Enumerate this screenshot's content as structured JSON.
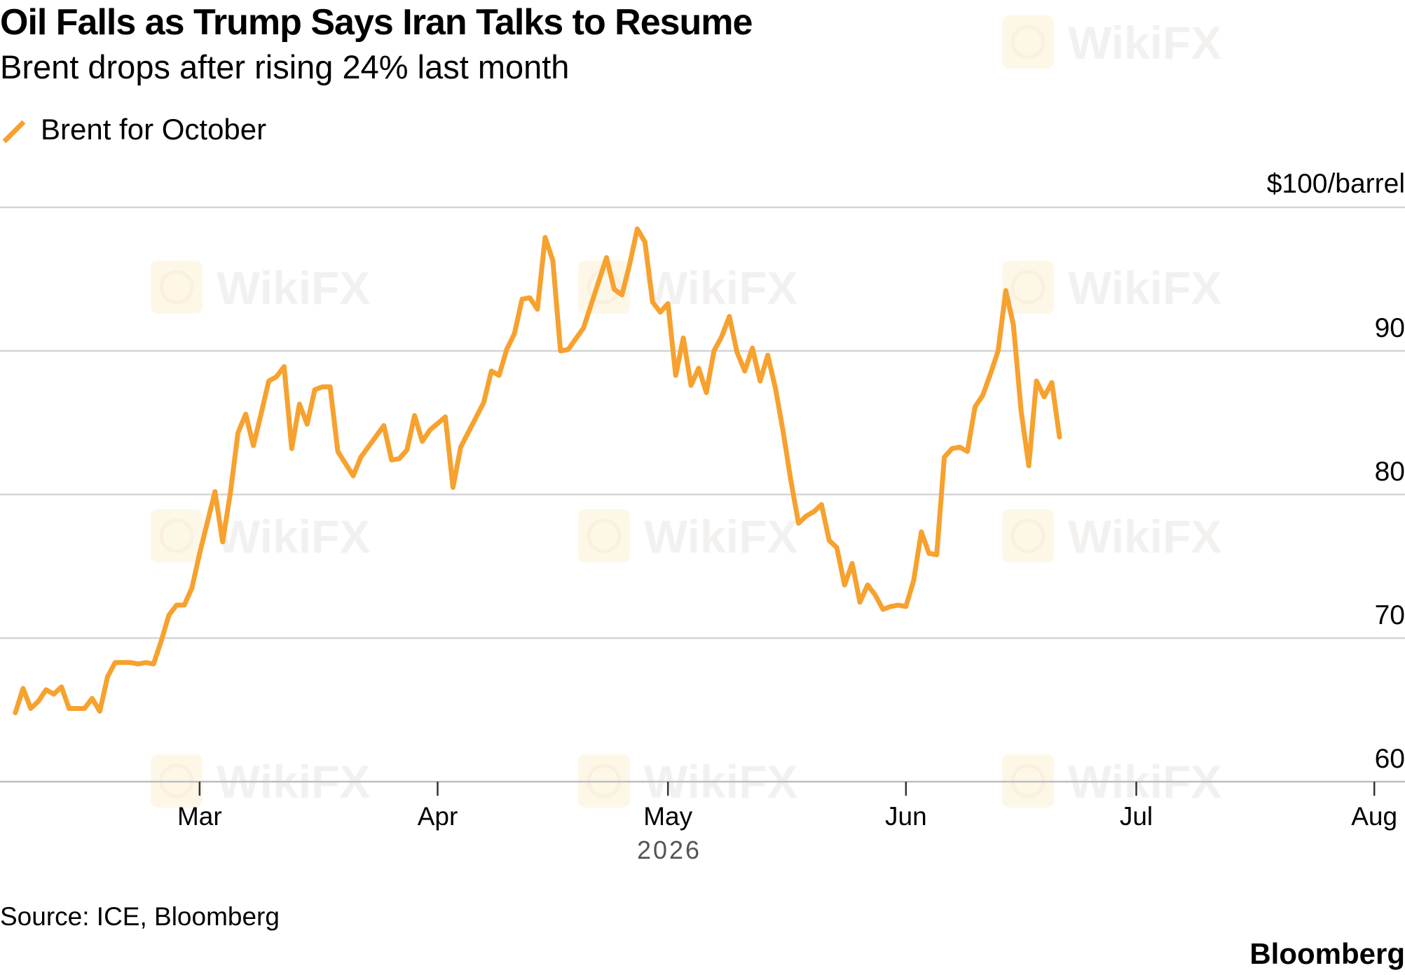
{
  "chart_data": {
    "type": "line",
    "title": "Oil Falls as Trump Says Iran Talks to Resume",
    "subtitle": "Brent drops after rising 24% last month",
    "legend": {
      "entries": [
        "Brent for October"
      ],
      "placement": "top-left"
    },
    "y_unit": "$100/barrel",
    "y_ticks": [
      60,
      70,
      80,
      90,
      100
    ],
    "y_tick_labels": [
      "60",
      "70",
      "80",
      "90"
    ],
    "ylim": [
      60,
      100
    ],
    "x_ticks": [
      "2026-03-01",
      "2026-04-01",
      "2026-05-01",
      "2026-06-01",
      "2026-07-01",
      "2026-08-01"
    ],
    "x_tick_labels": [
      "Mar",
      "Apr",
      "May",
      "Jun",
      "Jul",
      "Aug"
    ],
    "xlim": [
      "2026-02-03",
      "2026-08-05"
    ],
    "year_label": "2026",
    "grid": true,
    "series": [
      {
        "name": "Brent for October",
        "color": "#f7a12e",
        "points": [
          [
            "2026-02-05",
            64.8
          ],
          [
            "2026-02-06",
            66.5
          ],
          [
            "2026-02-07",
            65.1
          ],
          [
            "2026-02-08",
            65.6
          ],
          [
            "2026-02-09",
            66.4
          ],
          [
            "2026-02-10",
            66.1
          ],
          [
            "2026-02-11",
            66.6
          ],
          [
            "2026-02-12",
            65.1
          ],
          [
            "2026-02-14",
            65.1
          ],
          [
            "2026-02-15",
            65.8
          ],
          [
            "2026-02-16",
            64.9
          ],
          [
            "2026-02-17",
            67.3
          ],
          [
            "2026-02-18",
            68.3
          ],
          [
            "2026-02-20",
            68.3
          ],
          [
            "2026-02-21",
            68.2
          ],
          [
            "2026-02-22",
            68.3
          ],
          [
            "2026-02-23",
            68.2
          ],
          [
            "2026-02-24",
            69.8
          ],
          [
            "2026-02-25",
            71.6
          ],
          [
            "2026-02-26",
            72.3
          ],
          [
            "2026-02-27",
            72.3
          ],
          [
            "2026-02-28",
            73.5
          ],
          [
            "2026-03-01",
            75.9
          ],
          [
            "2026-03-03",
            80.2
          ],
          [
            "2026-03-04",
            76.7
          ],
          [
            "2026-03-05",
            80.1
          ],
          [
            "2026-03-06",
            84.3
          ],
          [
            "2026-03-07",
            85.6
          ],
          [
            "2026-03-08",
            83.4
          ],
          [
            "2026-03-09",
            85.6
          ],
          [
            "2026-03-10",
            87.9
          ],
          [
            "2026-03-11",
            88.2
          ],
          [
            "2026-03-12",
            88.9
          ],
          [
            "2026-03-13",
            83.2
          ],
          [
            "2026-03-14",
            86.3
          ],
          [
            "2026-03-15",
            84.9
          ],
          [
            "2026-03-16",
            87.3
          ],
          [
            "2026-03-17",
            87.5
          ],
          [
            "2026-03-18",
            87.5
          ],
          [
            "2026-03-19",
            83.0
          ],
          [
            "2026-03-21",
            81.3
          ],
          [
            "2026-03-22",
            82.6
          ],
          [
            "2026-03-25",
            84.8
          ],
          [
            "2026-03-26",
            82.4
          ],
          [
            "2026-03-27",
            82.5
          ],
          [
            "2026-03-28",
            83.1
          ],
          [
            "2026-03-29",
            85.5
          ],
          [
            "2026-03-30",
            83.7
          ],
          [
            "2026-03-31",
            84.5
          ],
          [
            "2026-04-02",
            85.4
          ],
          [
            "2026-04-03",
            80.5
          ],
          [
            "2026-04-04",
            83.3
          ],
          [
            "2026-04-07",
            86.4
          ],
          [
            "2026-04-08",
            88.6
          ],
          [
            "2026-04-09",
            88.3
          ],
          [
            "2026-04-10",
            90.1
          ],
          [
            "2026-04-11",
            91.2
          ],
          [
            "2026-04-12",
            93.6
          ],
          [
            "2026-04-13",
            93.7
          ],
          [
            "2026-04-14",
            92.9
          ],
          [
            "2026-04-15",
            97.9
          ],
          [
            "2026-04-16",
            96.3
          ],
          [
            "2026-04-17",
            90.0
          ],
          [
            "2026-04-18",
            90.1
          ],
          [
            "2026-04-20",
            91.6
          ],
          [
            "2026-04-23",
            96.5
          ],
          [
            "2026-04-24",
            94.3
          ],
          [
            "2026-04-25",
            93.9
          ],
          [
            "2026-04-26",
            96.0
          ],
          [
            "2026-04-27",
            98.5
          ],
          [
            "2026-04-28",
            97.6
          ],
          [
            "2026-04-29",
            93.4
          ],
          [
            "2026-04-30",
            92.7
          ],
          [
            "2026-05-01",
            93.3
          ],
          [
            "2026-05-02",
            88.3
          ],
          [
            "2026-05-03",
            90.9
          ],
          [
            "2026-05-04",
            87.6
          ],
          [
            "2026-05-05",
            88.8
          ],
          [
            "2026-05-06",
            87.1
          ],
          [
            "2026-05-07",
            90.0
          ],
          [
            "2026-05-08",
            91.0
          ],
          [
            "2026-05-09",
            92.4
          ],
          [
            "2026-05-10",
            89.9
          ],
          [
            "2026-05-11",
            88.6
          ],
          [
            "2026-05-12",
            90.2
          ],
          [
            "2026-05-13",
            87.9
          ],
          [
            "2026-05-14",
            89.7
          ],
          [
            "2026-05-15",
            87.4
          ],
          [
            "2026-05-16",
            84.4
          ],
          [
            "2026-05-17",
            81.0
          ],
          [
            "2026-05-18",
            78.0
          ],
          [
            "2026-05-19",
            78.5
          ],
          [
            "2026-05-20",
            78.8
          ],
          [
            "2026-05-21",
            79.3
          ],
          [
            "2026-05-22",
            76.8
          ],
          [
            "2026-05-23",
            76.3
          ],
          [
            "2026-05-24",
            73.7
          ],
          [
            "2026-05-25",
            75.2
          ],
          [
            "2026-05-26",
            72.5
          ],
          [
            "2026-05-27",
            73.7
          ],
          [
            "2026-05-28",
            73.0
          ],
          [
            "2026-05-29",
            72.0
          ],
          [
            "2026-05-30",
            72.2
          ],
          [
            "2026-05-31",
            72.3
          ],
          [
            "2026-06-01",
            72.2
          ],
          [
            "2026-06-02",
            74.0
          ],
          [
            "2026-06-03",
            77.4
          ],
          [
            "2026-06-04",
            75.9
          ],
          [
            "2026-06-05",
            75.8
          ],
          [
            "2026-06-06",
            82.6
          ],
          [
            "2026-06-07",
            83.2
          ],
          [
            "2026-06-08",
            83.3
          ],
          [
            "2026-06-09",
            83.0
          ],
          [
            "2026-06-10",
            86.1
          ],
          [
            "2026-06-11",
            86.9
          ],
          [
            "2026-06-12",
            88.4
          ],
          [
            "2026-06-13",
            90.0
          ],
          [
            "2026-06-14",
            94.2
          ],
          [
            "2026-06-15",
            91.8
          ],
          [
            "2026-06-16",
            85.8
          ],
          [
            "2026-06-17",
            82.0
          ],
          [
            "2026-06-18",
            87.9
          ],
          [
            "2026-06-19",
            86.8
          ],
          [
            "2026-06-20",
            87.8
          ],
          [
            "2026-06-21",
            84.0
          ]
        ]
      }
    ]
  },
  "footer": {
    "source": "Source: ICE, Bloomberg",
    "brand": "Bloomberg"
  },
  "watermark": "WikiFX"
}
